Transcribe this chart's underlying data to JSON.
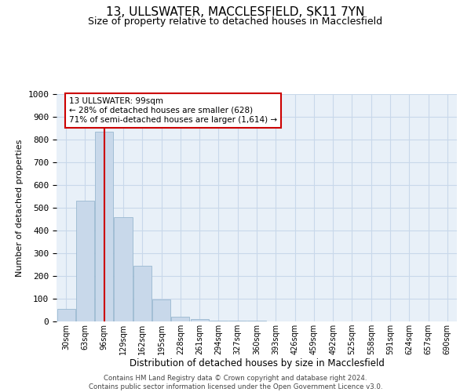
{
  "title": "13, ULLSWATER, MACCLESFIELD, SK11 7YN",
  "subtitle": "Size of property relative to detached houses in Macclesfield",
  "xlabel": "Distribution of detached houses by size in Macclesfield",
  "ylabel": "Number of detached properties",
  "bar_values": [
    55,
    530,
    835,
    460,
    245,
    95,
    20,
    10,
    5,
    3,
    2,
    1,
    1,
    1,
    0,
    0,
    0,
    0,
    0,
    0,
    0
  ],
  "bar_labels": [
    "30sqm",
    "63sqm",
    "96sqm",
    "129sqm",
    "162sqm",
    "195sqm",
    "228sqm",
    "261sqm",
    "294sqm",
    "327sqm",
    "360sqm",
    "393sqm",
    "426sqm",
    "459sqm",
    "492sqm",
    "525sqm",
    "558sqm",
    "591sqm",
    "624sqm",
    "657sqm",
    "690sqm"
  ],
  "bar_color": "#c8d8ea",
  "bar_edge_color": "#9ab8d0",
  "grid_color": "#c8d8ea",
  "background_color": "#e8f0f8",
  "annotation_box_color": "#cc0000",
  "property_line_color": "#cc0000",
  "property_bin_index": 2,
  "annotation_text": "13 ULLSWATER: 99sqm\n← 28% of detached houses are smaller (628)\n71% of semi-detached houses are larger (1,614) →",
  "ylim": [
    0,
    1000
  ],
  "yticks": [
    0,
    100,
    200,
    300,
    400,
    500,
    600,
    700,
    800,
    900,
    1000
  ],
  "footer_text": "Contains HM Land Registry data © Crown copyright and database right 2024.\nContains public sector information licensed under the Open Government Licence v3.0.",
  "title_fontsize": 11,
  "subtitle_fontsize": 9
}
